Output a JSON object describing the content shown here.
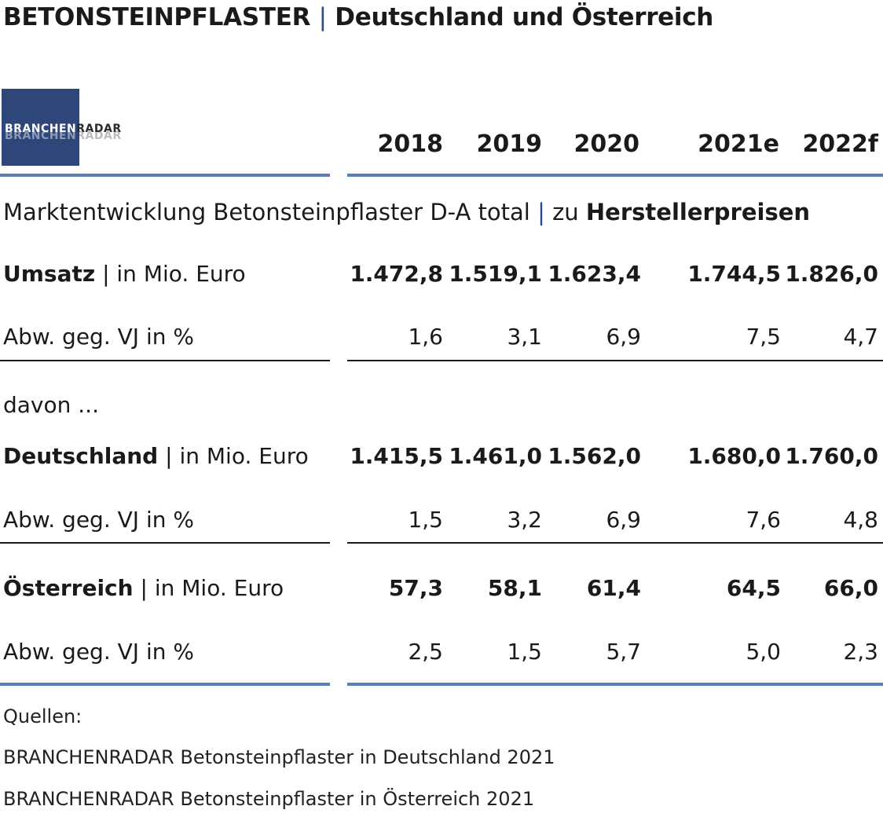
{
  "title": {
    "main": "BETONSTEINPFLASTER",
    "separator": "|",
    "sub": "Deutschland und Österreich"
  },
  "logo": {
    "part1": "BRANCHEN",
    "part2": "RADAR"
  },
  "years": [
    "2018",
    "2019",
    "2020",
    "2021e",
    "2022f"
  ],
  "section_heading": {
    "text": "Marktentwicklung Betonsteinpflaster D-A total",
    "separator": "|",
    "suffix_plain": "zu",
    "suffix_bold": "Herstellerpreisen"
  },
  "umsatz": {
    "label_bold": "Umsatz",
    "separator": "|",
    "label_unit": "in Mio. Euro",
    "values": [
      "1.472,8",
      "1.519,1",
      "1.623,4",
      "1.744,5",
      "1.826,0"
    ],
    "change_label": "Abw. geg. VJ in %",
    "change_values": [
      "1,6",
      "3,1",
      "6,9",
      "7,5",
      "4,7"
    ]
  },
  "davon": "davon ...",
  "deutschland": {
    "label_bold": "Deutschland",
    "separator": "|",
    "label_unit": "in Mio. Euro",
    "values": [
      "1.415,5",
      "1.461,0",
      "1.562,0",
      "1.680,0",
      "1.760,0"
    ],
    "change_label": "Abw. geg. VJ in %",
    "change_values": [
      "1,5",
      "3,2",
      "6,9",
      "7,6",
      "4,8"
    ]
  },
  "oesterreich": {
    "label_bold": "Österreich",
    "separator": "|",
    "label_unit": "in Mio. Euro",
    "values": [
      "57,3",
      "58,1",
      "61,4",
      "64,5",
      "66,0"
    ],
    "change_label": "Abw. geg. VJ in %",
    "change_values": [
      "2,5",
      "1,5",
      "5,7",
      "5,0",
      "2,3"
    ]
  },
  "sources": {
    "heading": "Quellen:",
    "items": [
      "BRANCHENRADAR Betonsteinpflaster in Deutschland 2021",
      "BRANCHENRADAR Betonsteinpflaster in Österreich 2021"
    ]
  },
  "colors": {
    "accent_blue": "#5b7fb3",
    "logo_bg": "#2e4679",
    "text": "#1a1a1a"
  }
}
